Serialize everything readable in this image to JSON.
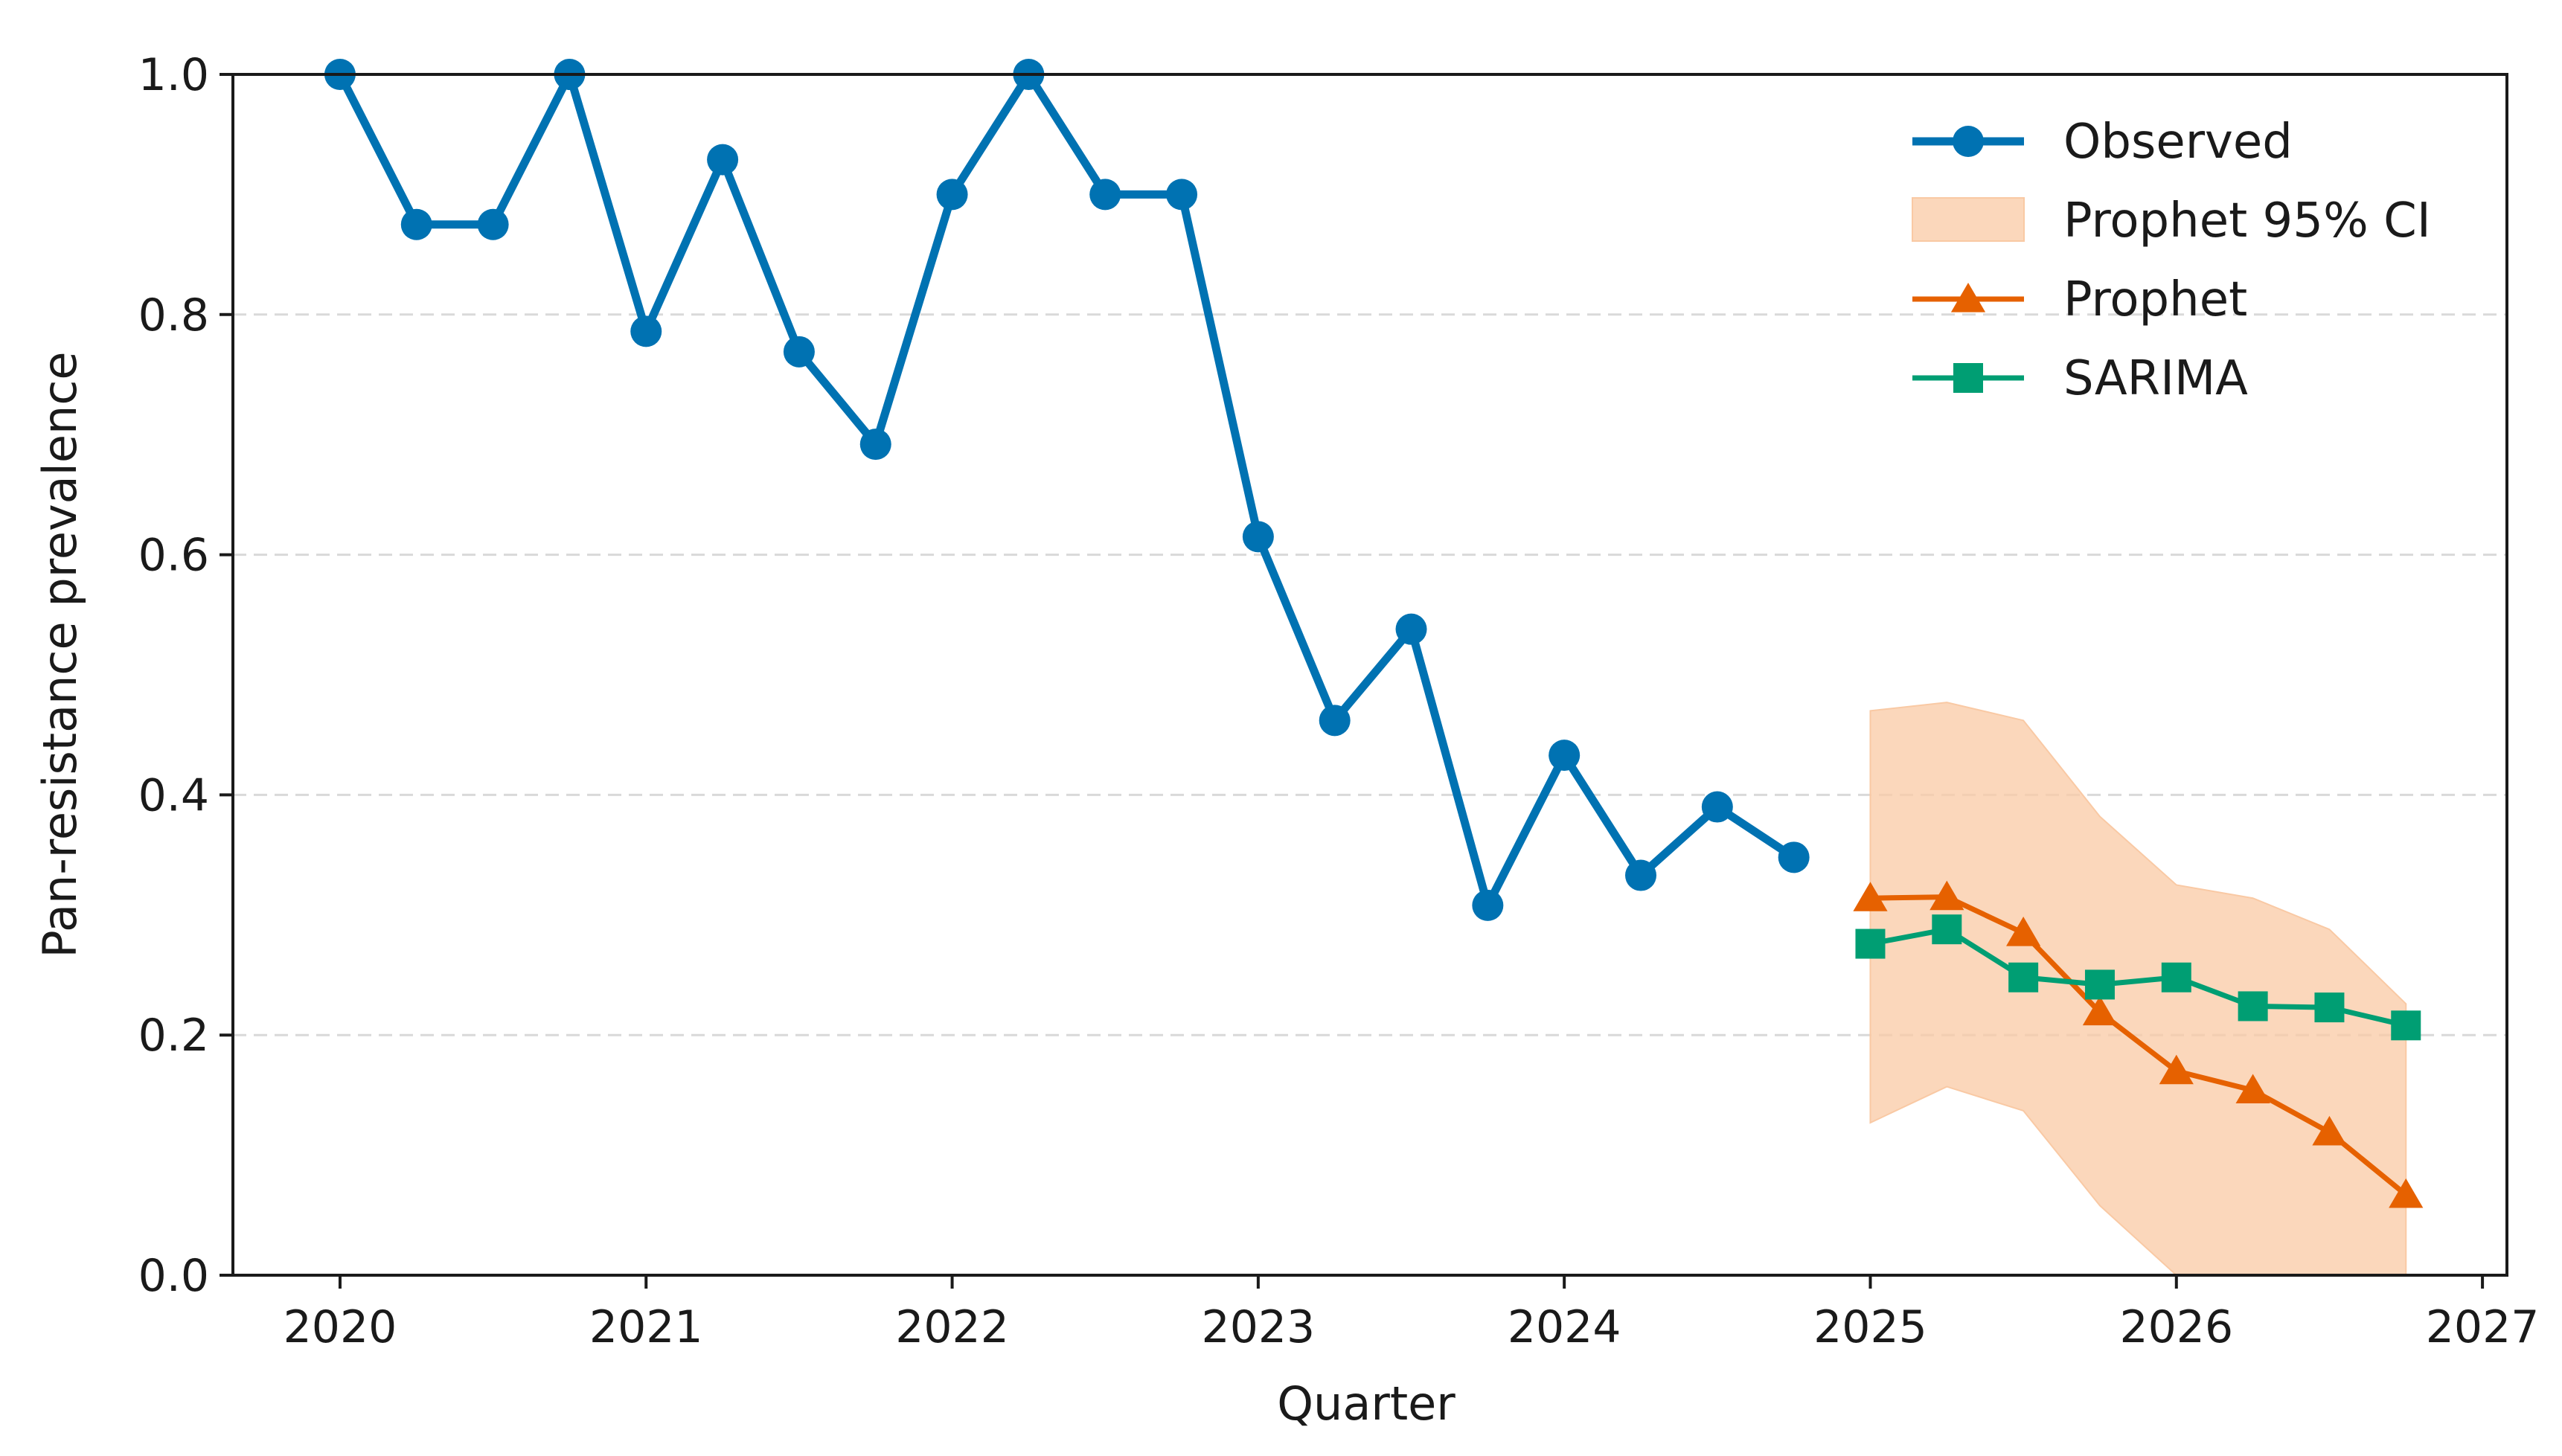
{
  "colors": {
    "observed": "#0072B2",
    "prophet": "#E66100",
    "prophet_ci": "#F9C9A4",
    "sarima": "#009E73",
    "grid": "#d9d9d9",
    "axis": "#1a1a1a"
  },
  "chart_data": {
    "type": "line",
    "xlabel": "Quarter",
    "ylabel": "Pan-resistance prevalence",
    "xlim": [
      2019.65,
      2027.08
    ],
    "ylim": [
      0.0,
      1.0
    ],
    "x_ticks": [
      2020,
      2021,
      2022,
      2023,
      2024,
      2025,
      2026,
      2027
    ],
    "x_tick_labels": [
      "2020",
      "2021",
      "2022",
      "2023",
      "2024",
      "2025",
      "2026",
      "2027"
    ],
    "y_ticks": [
      0.0,
      0.2,
      0.4,
      0.6,
      0.8,
      1.0
    ],
    "y_tick_labels": [
      "0.0",
      "0.2",
      "0.4",
      "0.6",
      "0.8",
      "1.0"
    ],
    "grid": "horizontal dashed",
    "legend_position": "top-right",
    "series": [
      {
        "name": "Observed",
        "marker": "circle",
        "x": [
          2020.0,
          2020.25,
          2020.5,
          2020.75,
          2021.0,
          2021.25,
          2021.5,
          2021.75,
          2022.0,
          2022.25,
          2022.5,
          2022.75,
          2023.0,
          2023.25,
          2023.5,
          2023.75,
          2024.0,
          2024.25,
          2024.5,
          2024.75
        ],
        "y": [
          1.0,
          0.875,
          0.875,
          1.0,
          0.786,
          0.929,
          0.769,
          0.692,
          0.9,
          1.0,
          0.9,
          0.9,
          0.615,
          0.462,
          0.538,
          0.308,
          0.433,
          0.333,
          0.39,
          0.348
        ]
      },
      {
        "name": "Prophet 95% CI",
        "type": "band",
        "x": [
          2025.0,
          2025.25,
          2025.5,
          2025.75,
          2026.0,
          2026.25,
          2026.5,
          2026.75
        ],
        "lower": [
          0.127,
          0.157,
          0.137,
          0.058,
          0.0,
          0.0,
          0.0,
          0.0
        ],
        "upper": [
          0.47,
          0.477,
          0.462,
          0.382,
          0.325,
          0.314,
          0.288,
          0.226
        ]
      },
      {
        "name": "Prophet",
        "marker": "triangle",
        "x": [
          2025.0,
          2025.25,
          2025.5,
          2025.75,
          2026.0,
          2026.25,
          2026.5,
          2026.75
        ],
        "y": [
          0.314,
          0.315,
          0.285,
          0.219,
          0.17,
          0.154,
          0.119,
          0.067
        ]
      },
      {
        "name": "SARIMA",
        "marker": "square",
        "x": [
          2025.0,
          2025.25,
          2025.5,
          2025.75,
          2026.0,
          2026.25,
          2026.5,
          2026.75
        ],
        "y": [
          0.276,
          0.288,
          0.248,
          0.242,
          0.248,
          0.224,
          0.223,
          0.208
        ]
      }
    ]
  }
}
